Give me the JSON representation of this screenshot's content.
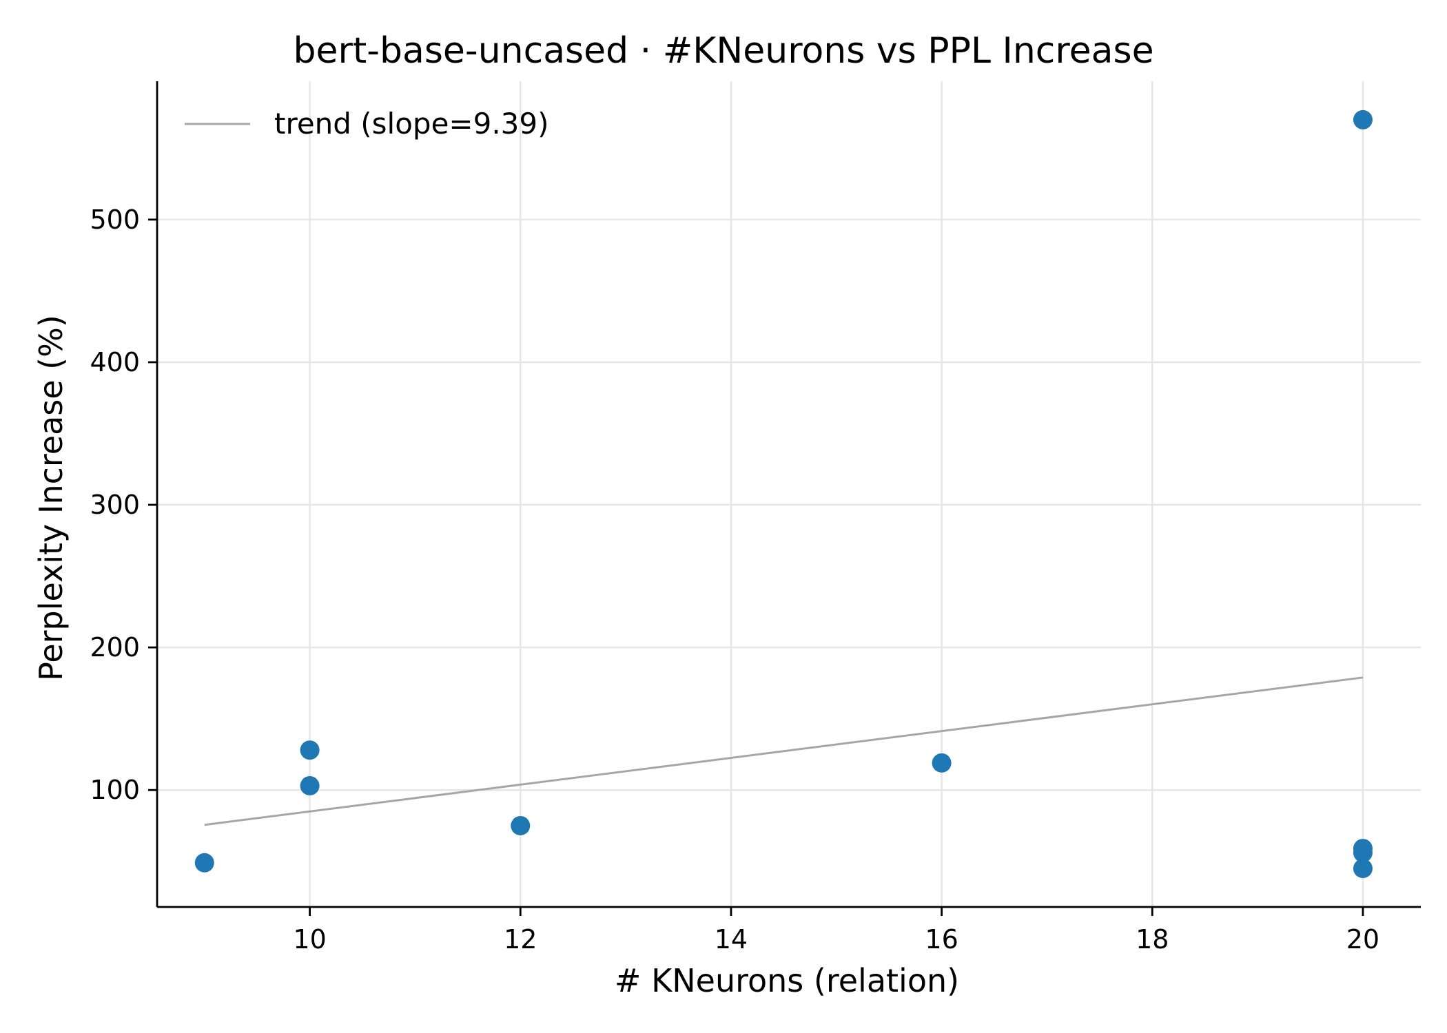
{
  "chart_data": {
    "type": "scatter",
    "title": "bert-base-uncased · #KNeurons vs PPL Increase",
    "xlabel": "# KNeurons (relation)",
    "ylabel": "Perplexity Increase (%)",
    "xlim": [
      8.55,
      20.55
    ],
    "ylim": [
      18,
      597
    ],
    "xticks": [
      10,
      12,
      14,
      16,
      18,
      20
    ],
    "yticks": [
      100,
      200,
      300,
      400,
      500
    ],
    "grid": true,
    "legend_position": "upper-left",
    "series": [
      {
        "kind": "scatter",
        "color": "#1f77b4",
        "points": [
          {
            "x": 9,
            "y": 49
          },
          {
            "x": 10,
            "y": 128
          },
          {
            "x": 10,
            "y": 103
          },
          {
            "x": 12,
            "y": 75
          },
          {
            "x": 16,
            "y": 119
          },
          {
            "x": 20,
            "y": 570
          },
          {
            "x": 20,
            "y": 59
          },
          {
            "x": 20,
            "y": 56
          },
          {
            "x": 20,
            "y": 45
          }
        ]
      },
      {
        "kind": "line",
        "name": "trend (slope=9.39)",
        "color": "#a6a6a6",
        "points": [
          {
            "x": 9,
            "y": 75.6
          },
          {
            "x": 20,
            "y": 178.9
          }
        ]
      }
    ]
  }
}
